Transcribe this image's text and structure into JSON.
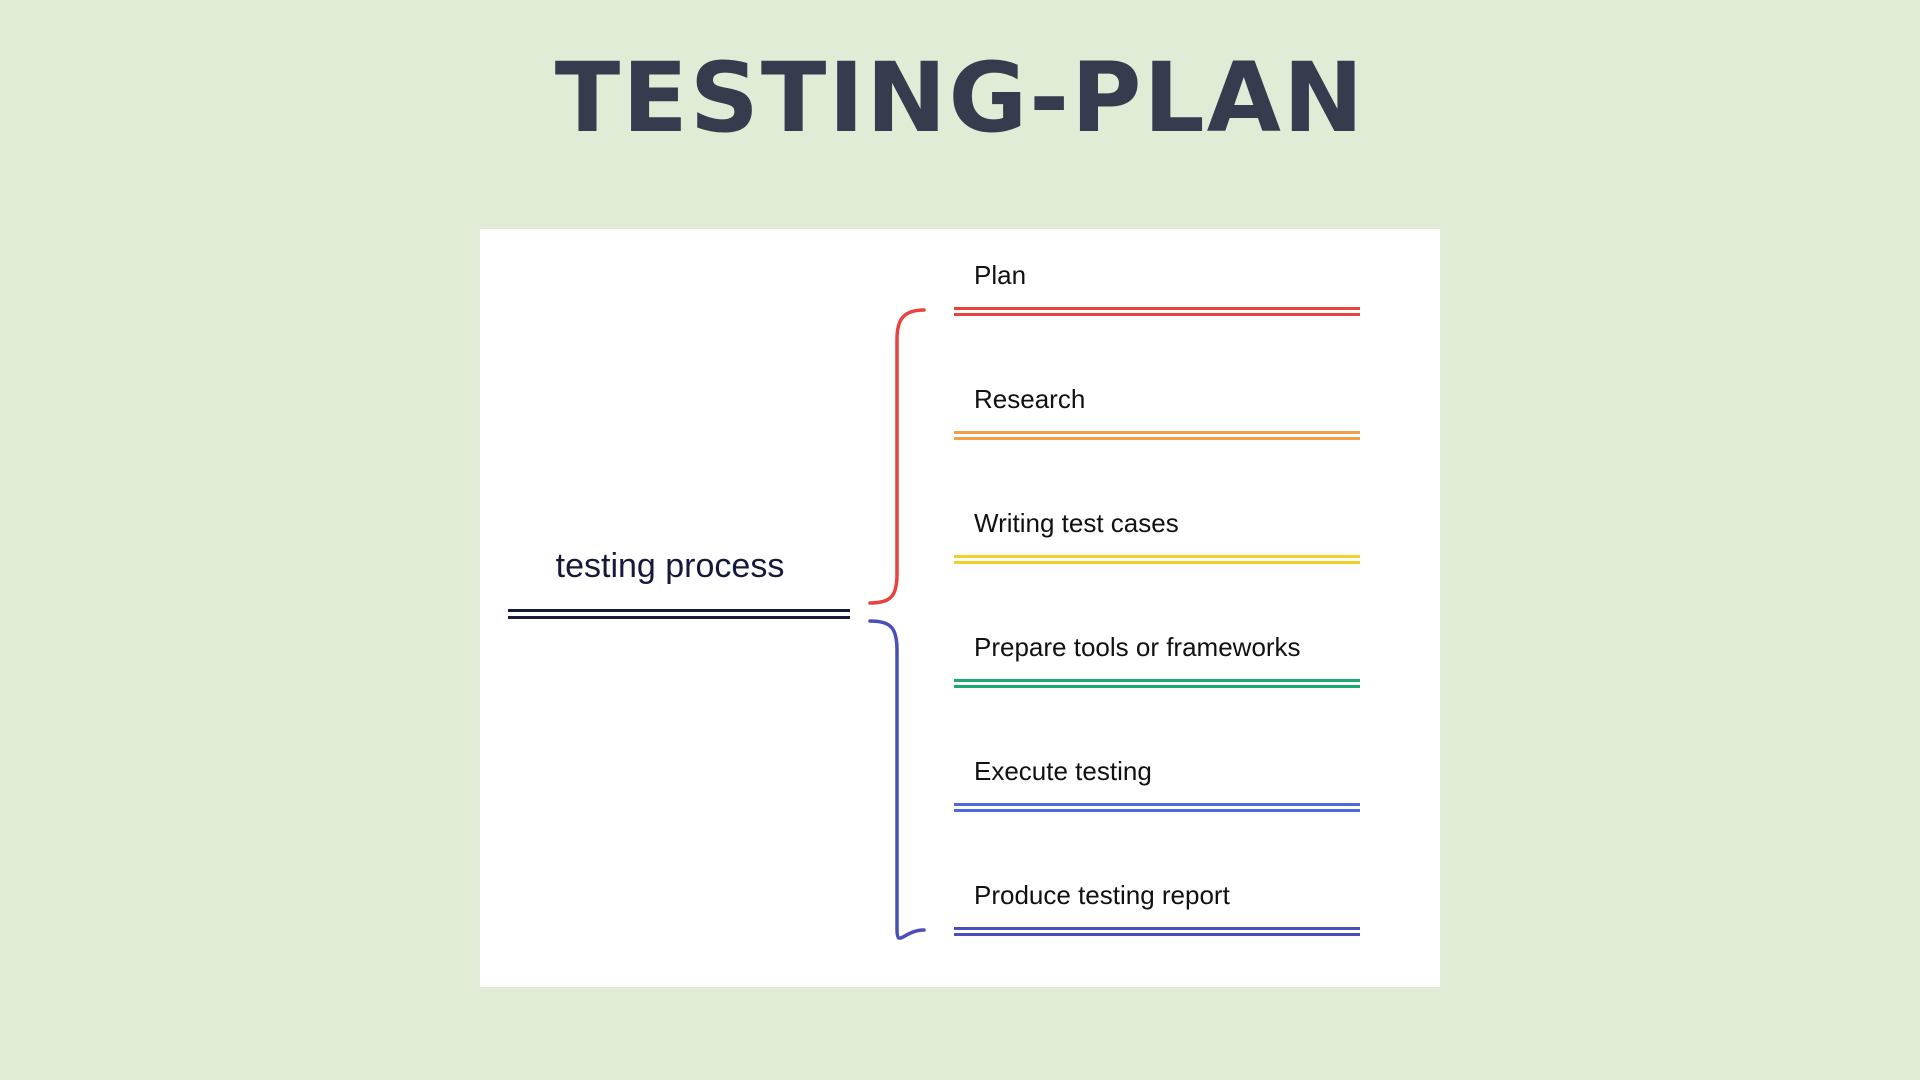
{
  "title": "TESTING-PLAN",
  "root": {
    "label": "testing process",
    "color": "#161a3a"
  },
  "brace_colors": {
    "upper": "#e8433c",
    "lower": "#4b4fb8"
  },
  "branches": [
    {
      "label": "Plan",
      "color": "#e8433c"
    },
    {
      "label": "Research",
      "color": "#f0a04b"
    },
    {
      "label": "Writing test cases",
      "color": "#f2cf2b"
    },
    {
      "label": "Prepare tools or frameworks",
      "color": "#1daa72"
    },
    {
      "label": "Execute testing",
      "color": "#4d6ad8"
    },
    {
      "label": "Produce testing report",
      "color": "#4b4fb8"
    }
  ]
}
